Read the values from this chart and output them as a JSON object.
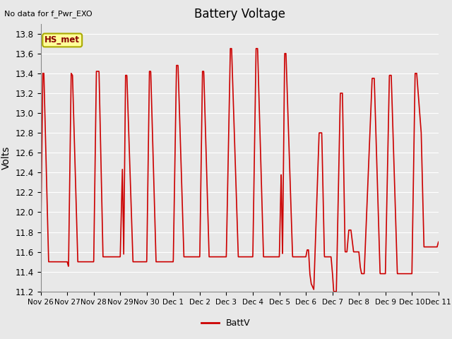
{
  "title": "Battery Voltage",
  "top_left_text": "No data for f_Pwr_EXO",
  "ylabel": "Volts",
  "legend_label": "BattV",
  "annotation_box": "HS_met",
  "yticks": [
    11.2,
    11.4,
    11.6,
    11.8,
    12.0,
    12.2,
    12.4,
    12.6,
    12.8,
    13.0,
    13.2,
    13.4,
    13.6,
    13.8
  ],
  "x_tick_labels": [
    "Nov 26",
    "Nov 27",
    "Nov 28",
    "Nov 29",
    "Nov 30",
    "Dec 1",
    "Dec 2",
    "Dec 3",
    "Dec 4",
    "Dec 5",
    "Dec 6",
    "Dec 7",
    "Dec 8",
    "Dec 9",
    "Dec 10",
    "Dec 11"
  ],
  "line_color": "#cc0000",
  "background_color": "#e8e8e8",
  "grid_color": "#ffffff",
  "annotation_box_facecolor": "#ffff99",
  "annotation_box_edgecolor": "#aaaa00",
  "annotation_text_color": "#880000"
}
